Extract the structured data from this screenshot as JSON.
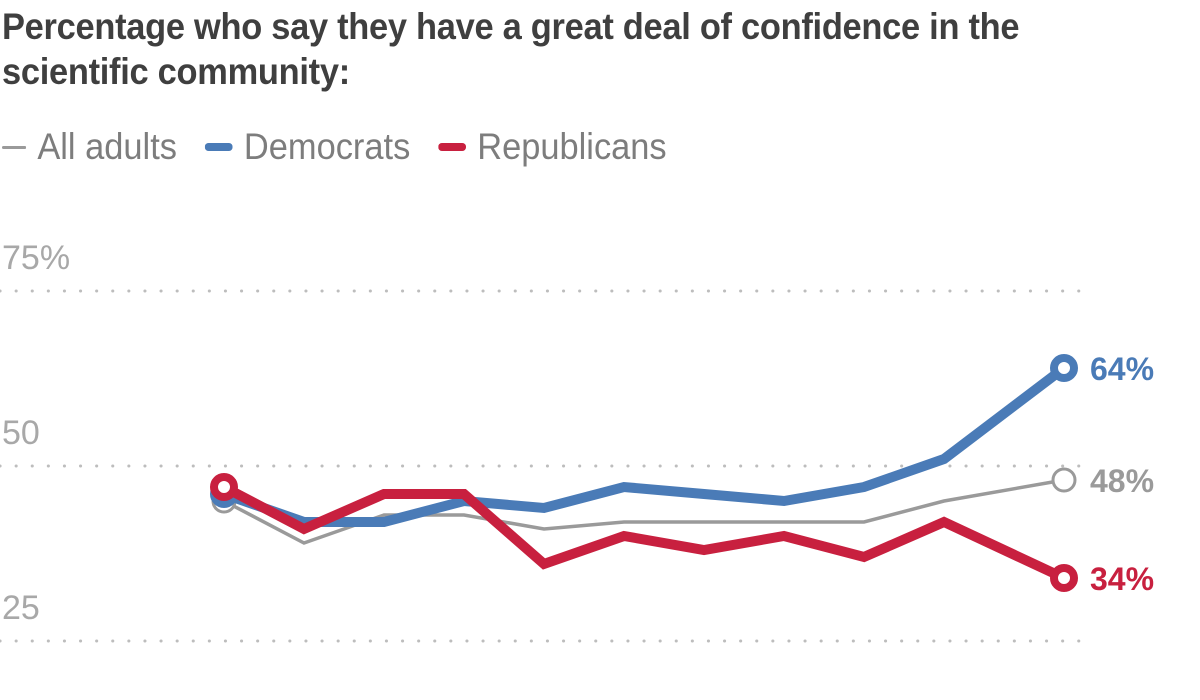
{
  "chart_data": {
    "type": "line",
    "title": "Percentage who say they have a great deal of confidence in the scientific community:",
    "xlabel": "",
    "ylabel": "",
    "ylim": [
      25,
      75
    ],
    "yticks": [
      75,
      50,
      25
    ],
    "ytick_labels": [
      "75%",
      "50",
      "25"
    ],
    "grid": true,
    "legend_position": "top-left",
    "x": [
      0,
      1,
      2,
      3,
      4,
      5,
      6,
      7,
      8,
      9,
      10.5
    ],
    "series": [
      {
        "name": "All adults",
        "color": "#9a9a9a",
        "style": "thin",
        "values": [
          45,
          39,
          43,
          43,
          41,
          42,
          42,
          42,
          42,
          45,
          48
        ],
        "end_label": "48%"
      },
      {
        "name": "Democrats",
        "color": "#4a7bb7",
        "style": "thick",
        "values": [
          46,
          42,
          42,
          45,
          44,
          47,
          46,
          45,
          47,
          51,
          64
        ],
        "end_label": "64%"
      },
      {
        "name": "Republicans",
        "color": "#c8203f",
        "style": "thick",
        "values": [
          47,
          41,
          46,
          46,
          36,
          40,
          38,
          40,
          37,
          42,
          34
        ],
        "end_label": "34%"
      }
    ]
  },
  "legend": {
    "items": [
      {
        "label": "All adults",
        "color": "#9a9a9a"
      },
      {
        "label": "Democrats",
        "color": "#4a7bb7"
      },
      {
        "label": "Republicans",
        "color": "#c8203f"
      }
    ]
  }
}
